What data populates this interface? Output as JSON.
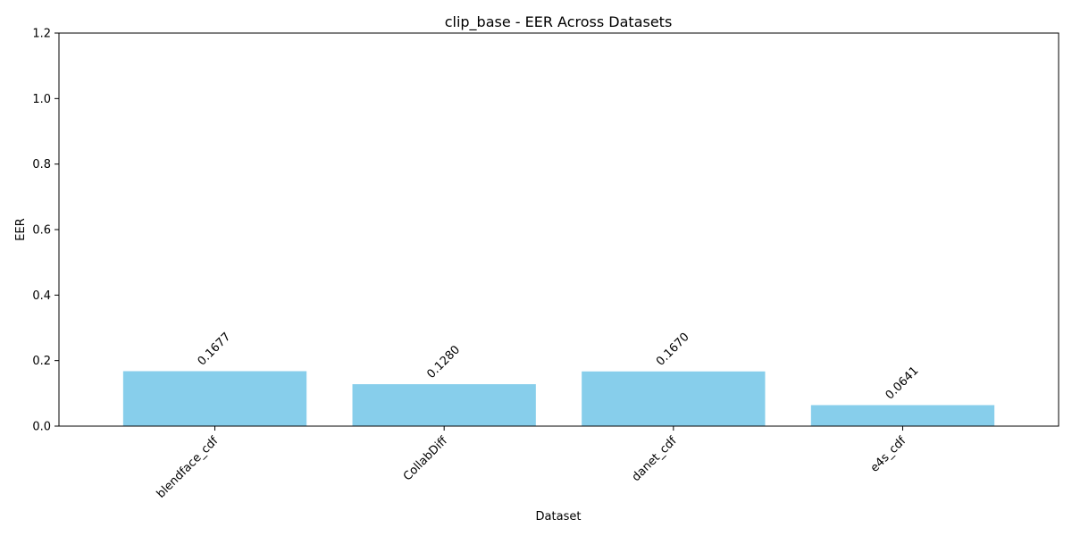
{
  "chart_data": {
    "type": "bar",
    "title": "clip_base - EER Across Datasets",
    "xlabel": "Dataset",
    "ylabel": "EER",
    "categories": [
      "blendface_cdf",
      "CollabDiff",
      "danet_cdf",
      "e4s_cdf"
    ],
    "values": [
      0.1677,
      0.128,
      0.167,
      0.0641
    ],
    "value_labels": [
      "0.1677",
      "0.1280",
      "0.1670",
      "0.0641"
    ],
    "ylim": [
      0,
      1.2
    ],
    "yticks": [
      0.0,
      0.2,
      0.4,
      0.6,
      0.8,
      1.0,
      1.2
    ],
    "ytick_labels": [
      "0.0",
      "0.2",
      "0.4",
      "0.6",
      "0.8",
      "1.0",
      "1.2"
    ],
    "bar_color": "#87CEEB",
    "grid": false,
    "legend": "none"
  }
}
